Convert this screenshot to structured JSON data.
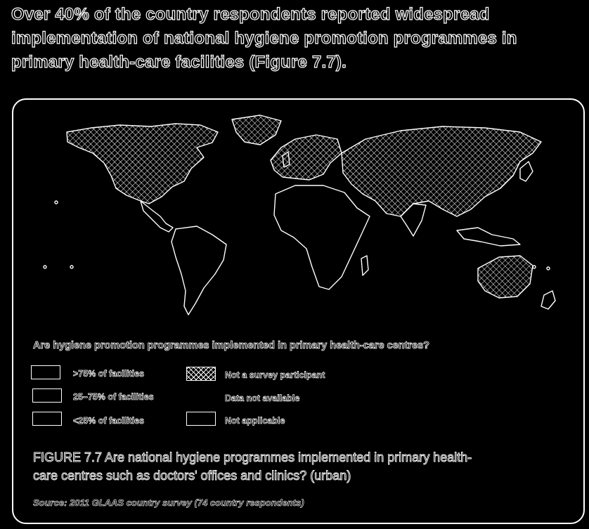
{
  "intro": {
    "lines": [
      "Over 40% of the country respondents reported widespread",
      "implementation of national hygiene promotion programmes in",
      "primary health-care facilities (Figure 7.7)."
    ]
  },
  "map": {
    "legend_title": "Are hygiene promotion programmes implemented in primary health-care centres?",
    "legend": [
      {
        "label": ">75% of facilities",
        "swatch": "outline"
      },
      {
        "label": "25–75% of facilities",
        "swatch": "outline"
      },
      {
        "label": "<25% of facilities",
        "swatch": "outline"
      },
      {
        "label": "Not a survey participant",
        "swatch": "hatch"
      },
      {
        "label": "Data not available",
        "swatch": "none"
      },
      {
        "label": "Not applicable",
        "swatch": "outline"
      }
    ],
    "colors": {
      "background": "#000000",
      "outline": "#ffffff"
    }
  },
  "caption": {
    "line1": "FIGURE 7.7 Are national hygiene programmes implemented in primary health-",
    "line2": "care centres such as doctors' offices and clinics? (urban)"
  },
  "source": "Source: 2011 GLAAS country survey (74 country respondents)"
}
